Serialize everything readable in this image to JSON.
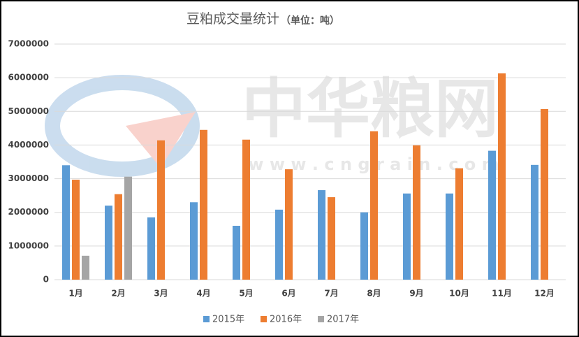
{
  "chart_data": {
    "type": "bar",
    "title": "豆粕成交量统计",
    "subtitle": "（单位：吨）",
    "watermark": {
      "name": "中华粮网",
      "url": "w w w . c n g r a i n . c o m"
    },
    "categories": [
      "1月",
      "2月",
      "3月",
      "4月",
      "5月",
      "6月",
      "7月",
      "8月",
      "9月",
      "10月",
      "11月",
      "12月"
    ],
    "series": [
      {
        "name": "2015年",
        "color": "#5b9bd5",
        "values": [
          3400000,
          2200000,
          1850000,
          2300000,
          1600000,
          2080000,
          2660000,
          2000000,
          2560000,
          2560000,
          3830000,
          3410000
        ]
      },
      {
        "name": "2016年",
        "color": "#ed7d31",
        "values": [
          2970000,
          2540000,
          4140000,
          4450000,
          4160000,
          3280000,
          2450000,
          4410000,
          3990000,
          3310000,
          6130000,
          5070000
        ]
      },
      {
        "name": "2017年",
        "color": "#a5a5a5",
        "values": [
          710000,
          3060000,
          null,
          null,
          null,
          null,
          null,
          null,
          null,
          null,
          null,
          null
        ]
      }
    ],
    "ylim": [
      0,
      7000000
    ],
    "yticks": [
      0,
      1000000,
      2000000,
      3000000,
      4000000,
      5000000,
      6000000,
      7000000
    ],
    "grid": true,
    "legend": "bottom"
  }
}
